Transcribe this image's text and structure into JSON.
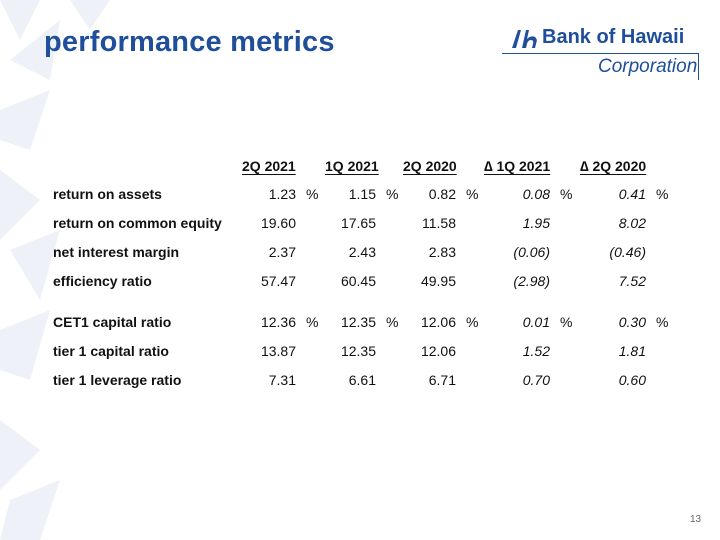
{
  "slide": {
    "title": "performance metrics",
    "page_number": "13"
  },
  "logo": {
    "name": "Bank of Hawaii",
    "sub": "Corporation"
  },
  "table": {
    "columns": [
      "2Q 2021",
      "1Q 2021",
      "2Q 2020",
      "∆ 1Q 2021",
      "∆ 2Q 2020"
    ],
    "percent_sign": "%",
    "rows": [
      {
        "label": "return on assets",
        "values": [
          "1.23",
          "1.15",
          "0.82",
          "0.08",
          "0.41"
        ],
        "pct": true
      },
      {
        "label": "return on common equity",
        "values": [
          "19.60",
          "17.65",
          "11.58",
          "1.95",
          "8.02"
        ],
        "pct": false
      },
      {
        "label": "net interest margin",
        "values": [
          "2.37",
          "2.43",
          "2.83",
          "(0.06)",
          "(0.46)"
        ],
        "pct": false
      },
      {
        "label": "efficiency ratio",
        "values": [
          "57.47",
          "60.45",
          "49.95",
          "(2.98)",
          "7.52"
        ],
        "pct": false
      },
      {
        "label": "CET1 capital ratio",
        "values": [
          "12.36",
          "12.35",
          "12.06",
          "0.01",
          "0.30"
        ],
        "pct": true
      },
      {
        "label": "tier 1 capital ratio",
        "values": [
          "13.87",
          "12.35",
          "12.06",
          "1.52",
          "1.81"
        ],
        "pct": false
      },
      {
        "label": "tier 1 leverage ratio",
        "values": [
          "7.31",
          "6.61",
          "6.71",
          "0.70",
          "0.60"
        ],
        "pct": false
      }
    ]
  }
}
